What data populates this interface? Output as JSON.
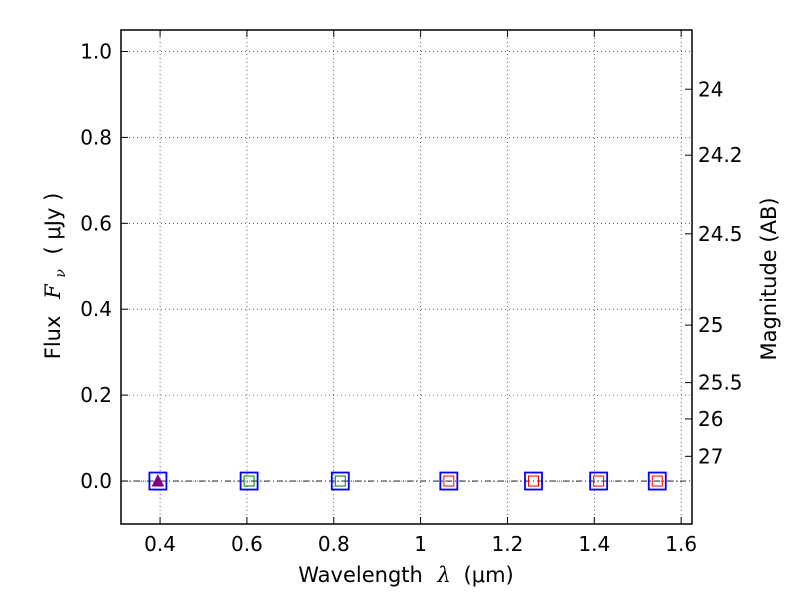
{
  "chart_data": {
    "type": "scatter",
    "xlabel_text": "Wavelength",
    "xlabel_symbol": "λ",
    "xlabel_unit": "(μm)",
    "ylabel_text": "Flux",
    "ylabel_symbol": "F",
    "ylabel_subscript": "ν",
    "ylabel_unit": "( μJy )",
    "y2label": "Magnitude (AB)",
    "xlim": [
      0.31,
      1.625
    ],
    "ylim": [
      -0.1,
      1.05
    ],
    "x_ticks": [
      0.4,
      0.6,
      0.8,
      1.0,
      1.2,
      1.4,
      1.6
    ],
    "x_tick_labels": [
      "0.4",
      "0.6",
      "0.8",
      "1",
      "1.2",
      "1.4",
      "1.6"
    ],
    "y_ticks": [
      0.0,
      0.2,
      0.4,
      0.6,
      0.8,
      1.0
    ],
    "y_tick_labels": [
      "0.0",
      "0.2",
      "0.4",
      "0.6",
      "0.8",
      "1.0"
    ],
    "mag_ticks": [
      24,
      24.2,
      24.5,
      25,
      25.5,
      26,
      27
    ],
    "mag_tick_labels": [
      "24",
      "24.2",
      "24.5",
      "25",
      "25.5",
      "26",
      "27"
    ],
    "grid": true,
    "zero_line": 0.0,
    "colors": {
      "square": "#0000ff",
      "triangle": "#800080",
      "green": "#008000",
      "red": "#ff0000"
    },
    "points": [
      {
        "x": 0.395,
        "y": 0.0,
        "inner": "triangle"
      },
      {
        "x": 0.605,
        "y": 0.0,
        "inner": "green"
      },
      {
        "x": 0.815,
        "y": 0.0,
        "inner": "green"
      },
      {
        "x": 1.065,
        "y": 0.0,
        "inner": "red"
      },
      {
        "x": 1.26,
        "y": 0.0,
        "inner": "red"
      },
      {
        "x": 1.41,
        "y": 0.0,
        "inner": "red"
      },
      {
        "x": 1.545,
        "y": 0.0,
        "inner": "red"
      }
    ]
  }
}
